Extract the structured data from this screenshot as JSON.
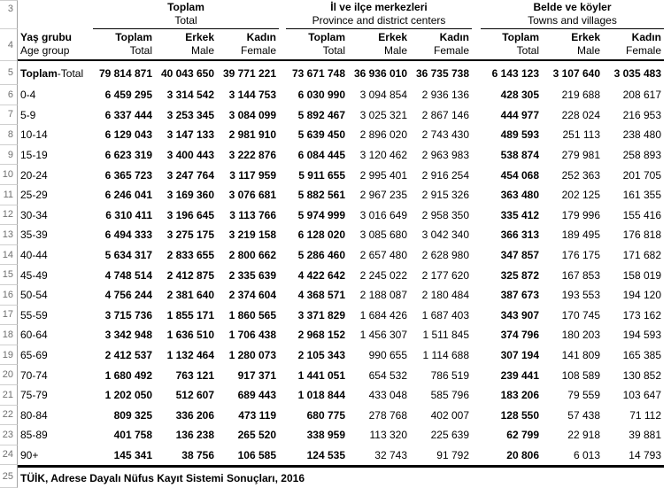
{
  "gutter": {
    "row_numbers": [
      "3",
      "4",
      "5",
      "6",
      "7",
      "8",
      "9",
      "10",
      "11",
      "12",
      "13",
      "14",
      "15",
      "16",
      "17",
      "18",
      "19",
      "20",
      "21",
      "22",
      "23",
      "24",
      "25"
    ]
  },
  "table": {
    "corner": {
      "tr": "Yaş grubu",
      "en": "Age group"
    },
    "groups": [
      {
        "tr": "Toplam",
        "en": "Total",
        "columns": [
          {
            "tr": "Toplam",
            "en": "Total"
          },
          {
            "tr": "Erkek",
            "en": "Male"
          },
          {
            "tr": "Kadın",
            "en": "Female"
          }
        ]
      },
      {
        "tr": "İl ve ilçe merkezleri",
        "en": "Province and district centers",
        "columns": [
          {
            "tr": "Toplam",
            "en": "Total"
          },
          {
            "tr": "Erkek",
            "en": "Male"
          },
          {
            "tr": "Kadın",
            "en": "Female"
          }
        ]
      },
      {
        "tr": "Belde ve köyler",
        "en": "Towns and villages",
        "columns": [
          {
            "tr": "Toplam",
            "en": "Total"
          },
          {
            "tr": "Erkek",
            "en": "Male"
          },
          {
            "tr": "Kadın",
            "en": "Female"
          }
        ]
      }
    ],
    "total_row": {
      "label_tr": "Toplam",
      "label_suffix": "-Total",
      "values": [
        "79 814 871",
        "40 043 650",
        "39 771 221",
        "73 671 748",
        "36 936 010",
        "36 735 738",
        "6 143 123",
        "3 107 640",
        "3 035 483"
      ]
    },
    "rows": [
      {
        "label": "0-4",
        "values": [
          "6 459 295",
          "3 314 542",
          "3 144 753",
          "6 030 990",
          "3 094 854",
          "2 936 136",
          "428 305",
          "219 688",
          "208 617"
        ]
      },
      {
        "label": "5-9",
        "values": [
          "6 337 444",
          "3 253 345",
          "3 084 099",
          "5 892 467",
          "3 025 321",
          "2 867 146",
          "444 977",
          "228 024",
          "216 953"
        ]
      },
      {
        "label": "10-14",
        "values": [
          "6 129 043",
          "3 147 133",
          "2 981 910",
          "5 639 450",
          "2 896 020",
          "2 743 430",
          "489 593",
          "251 113",
          "238 480"
        ]
      },
      {
        "label": "15-19",
        "values": [
          "6 623 319",
          "3 400 443",
          "3 222 876",
          "6 084 445",
          "3 120 462",
          "2 963 983",
          "538 874",
          "279 981",
          "258 893"
        ]
      },
      {
        "label": "20-24",
        "values": [
          "6 365 723",
          "3 247 764",
          "3 117 959",
          "5 911 655",
          "2 995 401",
          "2 916 254",
          "454 068",
          "252 363",
          "201 705"
        ]
      },
      {
        "label": "25-29",
        "values": [
          "6 246 041",
          "3 169 360",
          "3 076 681",
          "5 882 561",
          "2 967 235",
          "2 915 326",
          "363 480",
          "202 125",
          "161 355"
        ]
      },
      {
        "label": "30-34",
        "values": [
          "6 310 411",
          "3 196 645",
          "3 113 766",
          "5 974 999",
          "3 016 649",
          "2 958 350",
          "335 412",
          "179 996",
          "155 416"
        ]
      },
      {
        "label": "35-39",
        "values": [
          "6 494 333",
          "3 275 175",
          "3 219 158",
          "6 128 020",
          "3 085 680",
          "3 042 340",
          "366 313",
          "189 495",
          "176 818"
        ]
      },
      {
        "label": "40-44",
        "values": [
          "5 634 317",
          "2 833 655",
          "2 800 662",
          "5 286 460",
          "2 657 480",
          "2 628 980",
          "347 857",
          "176 175",
          "171 682"
        ]
      },
      {
        "label": "45-49",
        "values": [
          "4 748 514",
          "2 412 875",
          "2 335 639",
          "4 422 642",
          "2 245 022",
          "2 177 620",
          "325 872",
          "167 853",
          "158 019"
        ]
      },
      {
        "label": "50-54",
        "values": [
          "4 756 244",
          "2 381 640",
          "2 374 604",
          "4 368 571",
          "2 188 087",
          "2 180 484",
          "387 673",
          "193 553",
          "194 120"
        ]
      },
      {
        "label": "55-59",
        "values": [
          "3 715 736",
          "1 855 171",
          "1 860 565",
          "3 371 829",
          "1 684 426",
          "1 687 403",
          "343 907",
          "170 745",
          "173 162"
        ]
      },
      {
        "label": "60-64",
        "values": [
          "3 342 948",
          "1 636 510",
          "1 706 438",
          "2 968 152",
          "1 456 307",
          "1 511 845",
          "374 796",
          "180 203",
          "194 593"
        ]
      },
      {
        "label": "65-69",
        "values": [
          "2 412 537",
          "1 132 464",
          "1 280 073",
          "2 105 343",
          "990 655",
          "1 114 688",
          "307 194",
          "141 809",
          "165 385"
        ]
      },
      {
        "label": "70-74",
        "values": [
          "1 680 492",
          "763 121",
          "917 371",
          "1 441 051",
          "654 532",
          "786 519",
          "239 441",
          "108 589",
          "130 852"
        ]
      },
      {
        "label": "75-79",
        "values": [
          "1 202 050",
          "512 607",
          "689 443",
          "1 018 844",
          "433 048",
          "585 796",
          "183 206",
          "79 559",
          "103 647"
        ]
      },
      {
        "label": "80-84",
        "values": [
          "809 325",
          "336 206",
          "473 119",
          "680 775",
          "278 768",
          "402 007",
          "128 550",
          "57 438",
          "71 112"
        ]
      },
      {
        "label": "85-89",
        "values": [
          "401 758",
          "136 238",
          "265 520",
          "338 959",
          "113 320",
          "225 639",
          "62 799",
          "22 918",
          "39 881"
        ]
      },
      {
        "label": "90+",
        "values": [
          "145 341",
          "38 756",
          "106 585",
          "124 535",
          "32 743",
          "91 792",
          "20 806",
          "6 013",
          "14 793"
        ]
      }
    ],
    "source_note": "TÜİK, Adrese Dayalı Nüfus Kayıt Sistemi Sonuçları, 2016"
  },
  "colors": {
    "text": "#000000",
    "row_number": "#6f6f6f",
    "gutter_gridline": "#cfcfcf",
    "gutter_vertical_line": "#a3a3a3",
    "table_rule": "#000000",
    "background": "#ffffff"
  }
}
